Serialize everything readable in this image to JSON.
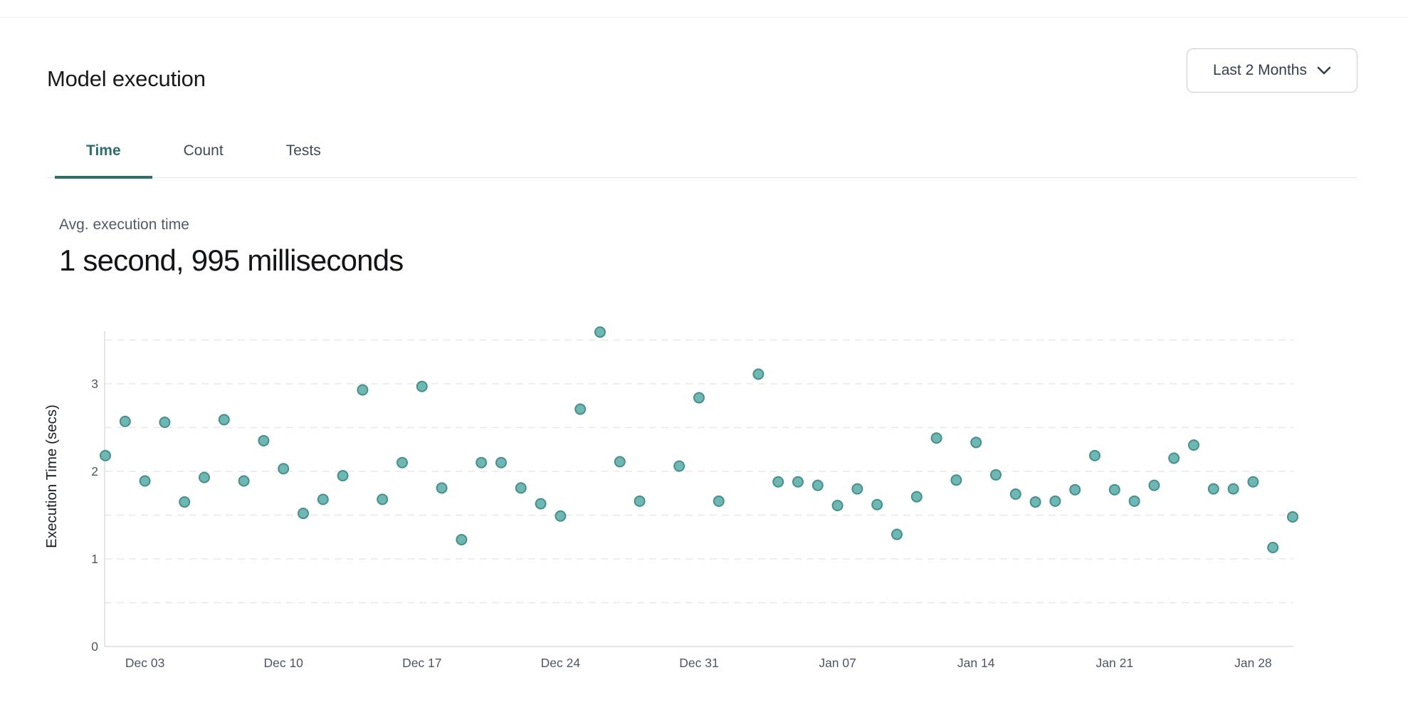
{
  "page": {
    "title": "Model execution"
  },
  "controls": {
    "range_selector": {
      "label": "Last 2 Months",
      "icon": "chevron-down"
    }
  },
  "tabs": [
    {
      "label": "Time",
      "active": true
    },
    {
      "label": "Count",
      "active": false
    },
    {
      "label": "Tests",
      "active": false
    }
  ],
  "summary": {
    "label": "Avg. execution time",
    "value": "1 second, 995 milliseconds"
  },
  "chart_data": {
    "type": "scatter",
    "title": "",
    "xlabel": "",
    "ylabel": "Execution Time (secs)",
    "ylim": [
      0,
      3.56
    ],
    "grid": "dashed-horizontal",
    "legend": "none",
    "y_tick_labels": [
      0,
      1,
      2,
      3
    ],
    "y_gridlines": [
      0.5,
      1,
      1.5,
      2,
      2.5,
      3,
      3.5
    ],
    "x_tick_labels": [
      "Dec 03",
      "Dec 10",
      "Dec 17",
      "Dec 24",
      "Dec 31",
      "Jan 07",
      "Jan 14",
      "Jan 21",
      "Jan 28"
    ],
    "colors": {
      "point_fill": "#6eb7b3",
      "point_stroke": "#46908c",
      "gridline": "#e8e8eb",
      "axis_line": "#dcdee2",
      "tick_text": "#4d5563",
      "axis_label_text": "#1d2025"
    },
    "points": [
      {
        "date": "Dec 01",
        "secs": 2.18
      },
      {
        "date": "Dec 02",
        "secs": 2.57
      },
      {
        "date": "Dec 03",
        "secs": 1.89
      },
      {
        "date": "Dec 04",
        "secs": 2.56
      },
      {
        "date": "Dec 05",
        "secs": 1.65
      },
      {
        "date": "Dec 06",
        "secs": 1.93
      },
      {
        "date": "Dec 07",
        "secs": 2.59
      },
      {
        "date": "Dec 08",
        "secs": 1.89
      },
      {
        "date": "Dec 09",
        "secs": 2.35
      },
      {
        "date": "Dec 10",
        "secs": 2.03
      },
      {
        "date": "Dec 11",
        "secs": 1.52
      },
      {
        "date": "Dec 12",
        "secs": 1.68
      },
      {
        "date": "Dec 13",
        "secs": 1.95
      },
      {
        "date": "Dec 14",
        "secs": 2.93
      },
      {
        "date": "Dec 15",
        "secs": 1.68
      },
      {
        "date": "Dec 16",
        "secs": 2.1
      },
      {
        "date": "Dec 17",
        "secs": 2.97
      },
      {
        "date": "Dec 18",
        "secs": 1.81
      },
      {
        "date": "Dec 19",
        "secs": 1.22
      },
      {
        "date": "Dec 20",
        "secs": 2.1
      },
      {
        "date": "Dec 21",
        "secs": 2.1
      },
      {
        "date": "Dec 22",
        "secs": 1.81
      },
      {
        "date": "Dec 23",
        "secs": 1.63
      },
      {
        "date": "Dec 24",
        "secs": 1.49
      },
      {
        "date": "Dec 25",
        "secs": 2.71
      },
      {
        "date": "Dec 26",
        "secs": 3.59
      },
      {
        "date": "Dec 27",
        "secs": 2.11
      },
      {
        "date": "Dec 28",
        "secs": 1.66
      },
      {
        "date": "Dec 30",
        "secs": 2.06
      },
      {
        "date": "Dec 31",
        "secs": 2.84
      },
      {
        "date": "Jan 01",
        "secs": 1.66
      },
      {
        "date": "Jan 03",
        "secs": 3.11
      },
      {
        "date": "Jan 04",
        "secs": 1.88
      },
      {
        "date": "Jan 05",
        "secs": 1.88
      },
      {
        "date": "Jan 06",
        "secs": 1.84
      },
      {
        "date": "Jan 07",
        "secs": 1.61
      },
      {
        "date": "Jan 08",
        "secs": 1.8
      },
      {
        "date": "Jan 09",
        "secs": 1.62
      },
      {
        "date": "Jan 10",
        "secs": 1.28
      },
      {
        "date": "Jan 11",
        "secs": 1.71
      },
      {
        "date": "Jan 12",
        "secs": 2.38
      },
      {
        "date": "Jan 13",
        "secs": 1.9
      },
      {
        "date": "Jan 14",
        "secs": 2.33
      },
      {
        "date": "Jan 15",
        "secs": 1.96
      },
      {
        "date": "Jan 16",
        "secs": 1.74
      },
      {
        "date": "Jan 17",
        "secs": 1.65
      },
      {
        "date": "Jan 18",
        "secs": 1.66
      },
      {
        "date": "Jan 19",
        "secs": 1.79
      },
      {
        "date": "Jan 20",
        "secs": 2.18
      },
      {
        "date": "Jan 21",
        "secs": 1.79
      },
      {
        "date": "Jan 22",
        "secs": 1.66
      },
      {
        "date": "Jan 23",
        "secs": 1.84
      },
      {
        "date": "Jan 24",
        "secs": 2.15
      },
      {
        "date": "Jan 25",
        "secs": 2.3
      },
      {
        "date": "Jan 26",
        "secs": 1.8
      },
      {
        "date": "Jan 27",
        "secs": 1.8
      },
      {
        "date": "Jan 28",
        "secs": 1.88
      },
      {
        "date": "Jan 29",
        "secs": 1.13
      },
      {
        "date": "Jan 30",
        "secs": 1.48
      }
    ]
  }
}
